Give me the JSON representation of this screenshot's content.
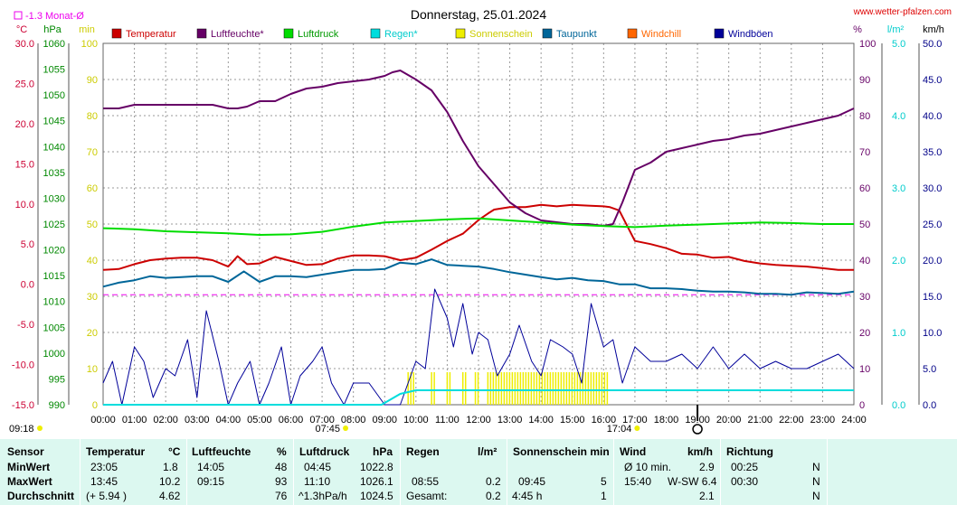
{
  "page": {
    "title": "Donnerstag, 25.01.2024",
    "website": "www.wetter-pfalzen.com",
    "monat_label": "-1.3 Monat-Ø",
    "sunrise": "07:45",
    "sunset": "17:04",
    "start_time": "09:18"
  },
  "colors": {
    "temperatur": "#cc0000",
    "luftfeuchte": "#660066",
    "luftdruck": "#00dd00",
    "regen": "#00dddd",
    "sonnenschein": "#eeee00",
    "taupunkt": "#006699",
    "windchill": "#ff6600",
    "windboeen": "#000099",
    "background_table": "#dcf8f0"
  },
  "chart_data": {
    "type": "line",
    "title": "Donnerstag, 25.01.2024",
    "x_ticks": [
      "00:00",
      "01:00",
      "02:00",
      "03:00",
      "04:00",
      "05:00",
      "06:00",
      "07:00",
      "08:00",
      "09:00",
      "10:00",
      "11:00",
      "12:00",
      "13:00",
      "14:00",
      "15:00",
      "16:00",
      "17:00",
      "18:00",
      "19:00",
      "20:00",
      "21:00",
      "22:00",
      "23:00",
      "24:00"
    ],
    "axes": {
      "temperature": {
        "unit": "°C",
        "ylim": [
          -15,
          30
        ],
        "ticks": [
          "30.0",
          "25.0",
          "20.0",
          "15.0",
          "10.0",
          "5.0",
          "0.0",
          "-5.0",
          "-10.0",
          "-15.0"
        ]
      },
      "pressure": {
        "unit": "hPa",
        "ylim": [
          990,
          1060
        ],
        "ticks": [
          "1060",
          "1055",
          "1050",
          "1045",
          "1040",
          "1035",
          "1030",
          "1025",
          "1020",
          "1015",
          "1010",
          "1005",
          "1000",
          "995",
          "990"
        ]
      },
      "minutes": {
        "unit": "min",
        "ylim": [
          0,
          100
        ],
        "ticks": [
          "100",
          "90",
          "80",
          "70",
          "60",
          "50",
          "40",
          "30",
          "20",
          "10",
          "0"
        ]
      },
      "humidity": {
        "unit": "%",
        "ylim": [
          0,
          100
        ],
        "ticks": [
          "100",
          "90",
          "80",
          "70",
          "60",
          "50",
          "40",
          "30",
          "20",
          "10",
          "0"
        ]
      },
      "rain": {
        "unit": "l/m²",
        "ylim": [
          0,
          5
        ],
        "ticks": [
          "5.0",
          "4.0",
          "3.0",
          "2.0",
          "1.0",
          "0.0"
        ]
      },
      "wind": {
        "unit": "km/h",
        "ylim": [
          0,
          50
        ],
        "ticks": [
          "50.0",
          "45.0",
          "40.0",
          "35.0",
          "30.0",
          "25.0",
          "20.0",
          "15.0",
          "10.0",
          "5.0",
          "0.0"
        ]
      }
    },
    "legend": [
      "Temperatur",
      "Luftfeuchte*",
      "Luftdruck",
      "Regen*",
      "Sonnenschein",
      "Taupunkt",
      "Windchill",
      "Windböen"
    ],
    "monthly_mean_temp": -1.3,
    "series": [
      {
        "name": "Temperatur",
        "axis": "temperature",
        "x": [
          0,
          0.5,
          1,
          1.5,
          2,
          2.5,
          3,
          3.5,
          4,
          4.3,
          4.6,
          5,
          5.5,
          6,
          6.5,
          7,
          7.5,
          8,
          8.5,
          9,
          9.5,
          10,
          10.5,
          11,
          11.5,
          12,
          12.3,
          12.5,
          13,
          13.5,
          14,
          14.5,
          15,
          15.5,
          16,
          16.2,
          16.5,
          17,
          17.5,
          18,
          18.5,
          19,
          19.5,
          20,
          20.5,
          21,
          21.5,
          22,
          22.5,
          23,
          23.5,
          24
        ],
        "y": [
          1.8,
          1.9,
          2.5,
          3,
          3.2,
          3.3,
          3.3,
          3.0,
          2.2,
          3.5,
          2.5,
          2.6,
          3.4,
          2.9,
          2.4,
          2.5,
          3.2,
          3.6,
          3.6,
          3.5,
          3.0,
          3.3,
          4.3,
          5.4,
          6.3,
          8.0,
          8.8,
          9.3,
          9.6,
          9.6,
          9.9,
          9.7,
          9.9,
          9.8,
          9.7,
          9.6,
          9.2,
          5.4,
          5.0,
          4.5,
          3.8,
          3.7,
          3.3,
          3.4,
          2.9,
          2.6,
          2.4,
          2.3,
          2.2,
          2.0,
          1.8,
          1.8
        ]
      },
      {
        "name": "Luftfeuchte*",
        "axis": "humidity",
        "x": [
          0,
          0.5,
          1,
          1.5,
          2,
          2.5,
          3,
          3.5,
          4,
          4.3,
          4.6,
          5,
          5.5,
          6,
          6.5,
          7,
          7.5,
          8,
          8.5,
          9,
          9.25,
          9.5,
          10,
          10.5,
          11,
          11.5,
          12,
          12.5,
          13,
          13.5,
          14,
          14.5,
          15,
          15.5,
          16,
          16.3,
          16.6,
          17,
          17.5,
          18,
          18.5,
          19,
          19.5,
          20,
          20.5,
          21,
          21.5,
          22,
          22.5,
          23,
          23.5,
          24
        ],
        "y": [
          82,
          82,
          83,
          83,
          83,
          83,
          83,
          83,
          82,
          82,
          82.5,
          84,
          84,
          86,
          87.5,
          88,
          89,
          89.5,
          90,
          91,
          92,
          92.5,
          90,
          87,
          81,
          73,
          66,
          61,
          56,
          53,
          51,
          50.5,
          50,
          50,
          49.5,
          50,
          56,
          65,
          67,
          70,
          71,
          72,
          73,
          73.5,
          74.5,
          75,
          76,
          77,
          78,
          79,
          80,
          82
        ]
      },
      {
        "name": "Luftdruck",
        "axis": "pressure",
        "x": [
          0,
          1,
          2,
          3,
          4,
          5,
          6,
          7,
          8,
          9,
          10,
          11,
          12,
          13,
          14,
          15,
          16,
          17,
          18,
          19,
          20,
          21,
          22,
          23,
          24
        ],
        "y": [
          1024.2,
          1024.0,
          1023.6,
          1023.4,
          1023.2,
          1022.9,
          1023.0,
          1023.5,
          1024.5,
          1025.3,
          1025.6,
          1025.9,
          1026.1,
          1025.7,
          1025.3,
          1024.9,
          1024.6,
          1024.4,
          1024.7,
          1024.9,
          1025.1,
          1025.3,
          1025.2,
          1025.0,
          1025.0
        ]
      },
      {
        "name": "Taupunkt",
        "axis": "temperature",
        "x": [
          0,
          0.5,
          1,
          1.5,
          2,
          2.5,
          3,
          3.5,
          4,
          4.5,
          5,
          5.5,
          6,
          6.5,
          7,
          7.5,
          8,
          8.5,
          9,
          9.5,
          10,
          10.5,
          11,
          11.5,
          12,
          12.5,
          13,
          13.5,
          14,
          14.5,
          15,
          15.5,
          16,
          16.5,
          17,
          17.5,
          18,
          18.5,
          19,
          19.5,
          20,
          20.5,
          21,
          21.5,
          22,
          22.5,
          23,
          23.5,
          24
        ],
        "y": [
          -0.3,
          0.2,
          0.5,
          1.0,
          0.8,
          0.9,
          1.0,
          1.0,
          0.3,
          1.6,
          0.3,
          1.0,
          1.0,
          0.9,
          1.2,
          1.5,
          1.8,
          1.8,
          1.9,
          2.7,
          2.5,
          3.1,
          2.4,
          2.3,
          2.2,
          1.9,
          1.5,
          1.2,
          0.9,
          0.6,
          0.8,
          0.5,
          0.4,
          0.0,
          0.0,
          -0.5,
          -0.5,
          -0.6,
          -0.8,
          -0.9,
          -0.9,
          -1.0,
          -1.2,
          -1.2,
          -1.3,
          -1.0,
          -1.1,
          -1.2,
          -0.9
        ]
      },
      {
        "name": "Windböen",
        "axis": "wind",
        "x": [
          0,
          0.3,
          0.6,
          1,
          1.3,
          1.6,
          2,
          2.3,
          2.7,
          3,
          3.3,
          3.7,
          4,
          4.3,
          4.7,
          5,
          5.3,
          5.7,
          6,
          6.3,
          6.7,
          7,
          7.3,
          7.7,
          8,
          8.5,
          9,
          9.5,
          10,
          10.3,
          10.6,
          11,
          11.2,
          11.5,
          11.8,
          12,
          12.3,
          12.6,
          13,
          13.3,
          13.7,
          14,
          14.3,
          14.7,
          15,
          15.3,
          15.6,
          16,
          16.3,
          16.6,
          17,
          17.5,
          18,
          18.5,
          19,
          19.5,
          20,
          20.5,
          21,
          21.5,
          22,
          22.5,
          23,
          23.5,
          24
        ],
        "y": [
          3,
          6,
          0,
          8,
          6,
          1,
          5,
          4,
          9,
          1,
          13,
          6,
          0,
          3,
          6,
          0,
          3,
          8,
          0,
          4,
          6,
          8,
          3,
          0,
          3,
          3,
          0,
          0,
          6,
          5,
          16,
          12,
          8,
          14,
          7,
          10,
          9,
          4,
          7,
          11,
          6,
          4,
          9,
          8,
          7,
          3,
          14,
          8,
          9,
          3,
          8,
          6,
          6,
          7,
          5,
          8,
          5,
          7,
          5,
          6,
          5,
          5,
          6,
          7,
          5
        ]
      }
    ],
    "rain": {
      "name": "Regen*",
      "axis": "rain",
      "x": [
        0,
        8.9,
        9.5,
        10,
        24
      ],
      "y": [
        0,
        0,
        0.15,
        0.2,
        0.2
      ]
    },
    "sunshine": {
      "name": "Sonnenschein",
      "axis": "minutes",
      "intervals": [
        [
          9.75,
          10.0
        ],
        [
          10.5,
          10.6
        ],
        [
          11.0,
          11.1
        ],
        [
          11.5,
          11.6
        ],
        [
          11.9,
          12.0
        ],
        [
          12.3,
          16.2
        ]
      ],
      "level": 5
    },
    "sun_markers": [
      "07:45",
      "17:04"
    ]
  },
  "table": {
    "headers": {
      "sensor": "Sensor",
      "temperatur": "Temperatur",
      "temperatur_unit": "°C",
      "luftfeuchte": "Luftfeuchte",
      "luftfeuchte_unit": "%",
      "luftdruck": "Luftdruck",
      "luftdruck_unit": "hPa",
      "regen": "Regen",
      "regen_unit": "l/m²",
      "sonne": "Sonnenschein min",
      "wind": "Wind",
      "wind_unit": "km/h",
      "richtung": "Richtung"
    },
    "rows": [
      {
        "label": "MinWert",
        "temp_time": "23:05",
        "temp_val": "1.8",
        "hum_time": "14:05",
        "hum_val": "48",
        "press_time": "04:45",
        "press_val": "1022.8",
        "rain_time": "",
        "rain_val": "",
        "sun_time": "",
        "sun_val": "",
        "wind_time": "Ø 10 min.",
        "wind_val": "2.9",
        "dir_time": "00:25",
        "dir_val": "N"
      },
      {
        "label": "MaxWert",
        "temp_time": "13:45",
        "temp_val": "10.2",
        "hum_time": "09:15",
        "hum_val": "93",
        "press_time": "11:10",
        "press_val": "1026.1",
        "rain_time": "08:55",
        "rain_val": "0.2",
        "sun_time": "09:45",
        "sun_val": "5",
        "wind_time": "15:40",
        "wind_val": "W-SW 6.4",
        "dir_time": "00:30",
        "dir_val": "N"
      },
      {
        "label": "Durchschnitt",
        "temp_time": "(+ 5.94 )",
        "temp_val": "4.62",
        "hum_time": "",
        "hum_val": "76",
        "press_time": "^1.3hPa/h",
        "press_val": "1024.5",
        "rain_time": "Gesamt:",
        "rain_val": "0.2",
        "sun_time": "4:45 h",
        "sun_val": "1",
        "wind_time": "",
        "wind_val": "2.1",
        "dir_time": "",
        "dir_val": "N"
      }
    ]
  }
}
